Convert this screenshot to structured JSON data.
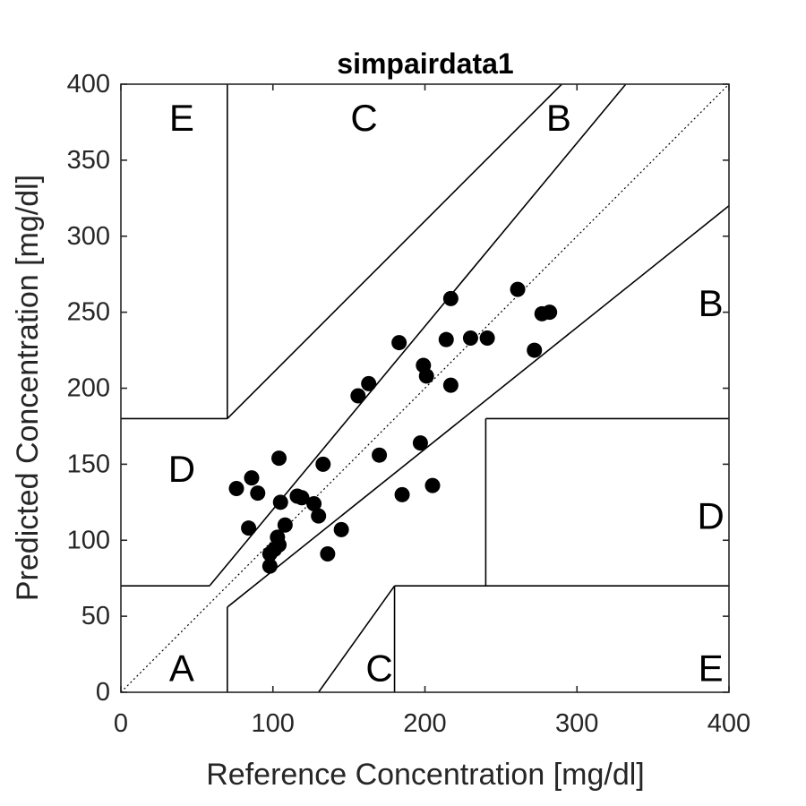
{
  "chart_data": {
    "type": "scatter",
    "title": "simpairdata1",
    "xlabel": "Reference Concentration [mg/dl]",
    "ylabel": "Predicted Concentration [mg/dl]",
    "xlim": [
      0,
      400
    ],
    "ylim": [
      0,
      400
    ],
    "xticks": [
      0,
      100,
      200,
      300,
      400
    ],
    "yticks": [
      0,
      50,
      100,
      150,
      200,
      250,
      300,
      350,
      400
    ],
    "grid": false,
    "points": [
      {
        "x": 76,
        "y": 134
      },
      {
        "x": 86,
        "y": 141
      },
      {
        "x": 90,
        "y": 131
      },
      {
        "x": 84,
        "y": 108
      },
      {
        "x": 104,
        "y": 154
      },
      {
        "x": 105,
        "y": 125
      },
      {
        "x": 116,
        "y": 129
      },
      {
        "x": 119,
        "y": 128
      },
      {
        "x": 108,
        "y": 110
      },
      {
        "x": 127,
        "y": 124
      },
      {
        "x": 130,
        "y": 116
      },
      {
        "x": 133,
        "y": 150
      },
      {
        "x": 103,
        "y": 102
      },
      {
        "x": 104,
        "y": 97
      },
      {
        "x": 101,
        "y": 94
      },
      {
        "x": 98,
        "y": 91
      },
      {
        "x": 98,
        "y": 83
      },
      {
        "x": 136,
        "y": 91
      },
      {
        "x": 145,
        "y": 107
      },
      {
        "x": 156,
        "y": 195
      },
      {
        "x": 163,
        "y": 203
      },
      {
        "x": 170,
        "y": 156
      },
      {
        "x": 183,
        "y": 230
      },
      {
        "x": 185,
        "y": 130
      },
      {
        "x": 197,
        "y": 164
      },
      {
        "x": 199,
        "y": 215
      },
      {
        "x": 201,
        "y": 208
      },
      {
        "x": 205,
        "y": 136
      },
      {
        "x": 214,
        "y": 232
      },
      {
        "x": 217,
        "y": 259
      },
      {
        "x": 217,
        "y": 202
      },
      {
        "x": 230,
        "y": 233
      },
      {
        "x": 241,
        "y": 233
      },
      {
        "x": 261,
        "y": 265
      },
      {
        "x": 272,
        "y": 225
      },
      {
        "x": 277,
        "y": 249
      },
      {
        "x": 282,
        "y": 250
      }
    ],
    "zone_labels": [
      {
        "text": "E",
        "x": 40,
        "y": 378
      },
      {
        "text": "C",
        "x": 160,
        "y": 378
      },
      {
        "text": "B",
        "x": 288,
        "y": 378
      },
      {
        "text": "B",
        "x": 388,
        "y": 256
      },
      {
        "text": "D",
        "x": 40,
        "y": 147
      },
      {
        "text": "D",
        "x": 388,
        "y": 116
      },
      {
        "text": "A",
        "x": 40,
        "y": 16
      },
      {
        "text": "C",
        "x": 170,
        "y": 16
      },
      {
        "text": "E",
        "x": 388,
        "y": 16
      }
    ],
    "zone_boundaries": [
      [
        [
          0,
          0
        ],
        [
          400,
          400
        ]
      ],
      [
        [
          70,
          0
        ],
        [
          70,
          56
        ]
      ],
      [
        [
          70,
          56
        ],
        [
          400,
          320
        ]
      ],
      [
        [
          58.33,
          70
        ],
        [
          332.12,
          400
        ]
      ],
      [
        [
          0,
          70
        ],
        [
          58.33,
          70
        ]
      ],
      [
        [
          70,
          180
        ],
        [
          70,
          400
        ]
      ],
      [
        [
          0,
          180
        ],
        [
          70,
          180
        ]
      ],
      [
        [
          70,
          180
        ],
        [
          290,
          400
        ]
      ],
      [
        [
          130,
          0
        ],
        [
          180,
          70
        ]
      ],
      [
        [
          180,
          0
        ],
        [
          180,
          70
        ]
      ],
      [
        [
          180,
          70
        ],
        [
          400,
          70
        ]
      ],
      [
        [
          240,
          70
        ],
        [
          240,
          180
        ]
      ],
      [
        [
          240,
          180
        ],
        [
          400,
          180
        ]
      ]
    ]
  }
}
